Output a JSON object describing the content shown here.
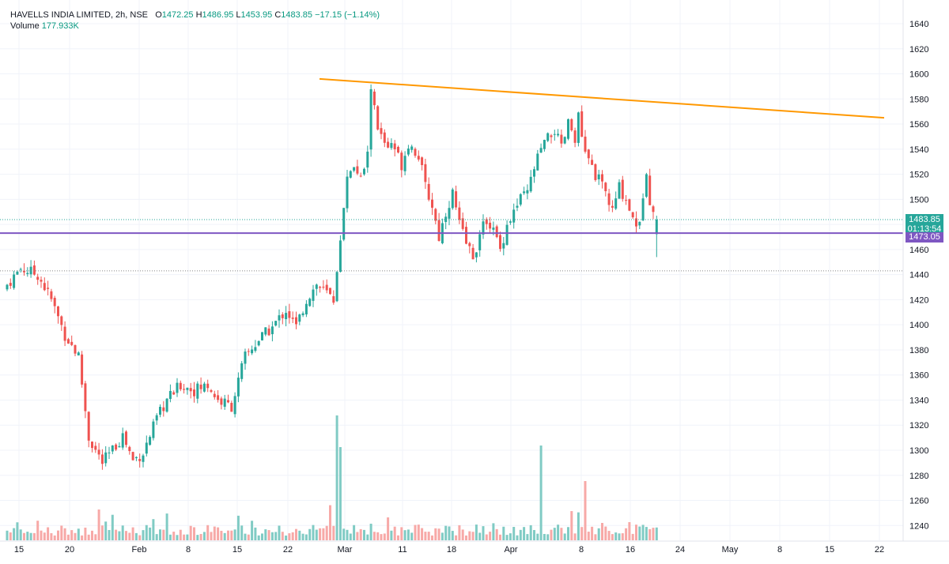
{
  "legend": {
    "symbol": "HAVELLS INDIA LIMITED, 2h, NSE",
    "open_label": "O",
    "open": "1472.25",
    "high_label": "H",
    "high": "1486.95",
    "low_label": "L",
    "low": "1453.95",
    "close_label": "C",
    "close": "1483.85",
    "change": "−17.15 (−1.14%)",
    "volume_label": "Volume",
    "volume": "177.933K"
  },
  "badges": {
    "last_price": "1483.85",
    "countdown": "01:13:54",
    "line_price": "1473.05"
  },
  "colors": {
    "up": "#26a69a",
    "down": "#ef5350",
    "volume_up": "#80cbc4",
    "volume_down": "#f7a9a7",
    "trendline": "#ff9800",
    "hline": "#7e57c2",
    "last_price_line": "#26a69a"
  },
  "chart_data": {
    "type": "candlestick",
    "y_ticks": [
      1240,
      1260,
      1280,
      1300,
      1320,
      1340,
      1360,
      1380,
      1400,
      1420,
      1440,
      1460,
      1480,
      1500,
      1520,
      1540,
      1560,
      1580,
      1600,
      1620,
      1640
    ],
    "ylim": [
      1230,
      1645
    ],
    "x_labels": [
      "15",
      "20",
      "Feb",
      "8",
      "15",
      "22",
      "Mar",
      "11",
      "18",
      "Apr",
      "8",
      "16",
      "24",
      "May",
      "8",
      "15",
      "22"
    ],
    "swing_path_close": [
      [
        0,
        1432
      ],
      [
        4,
        1445
      ],
      [
        9,
        1440
      ],
      [
        13,
        1420
      ],
      [
        17,
        1392
      ],
      [
        21,
        1375
      ],
      [
        24,
        1310
      ],
      [
        28,
        1290
      ],
      [
        31,
        1300
      ],
      [
        34,
        1312
      ],
      [
        37,
        1292
      ],
      [
        40,
        1298
      ],
      [
        44,
        1325
      ],
      [
        47,
        1340
      ],
      [
        51,
        1352
      ],
      [
        55,
        1348
      ],
      [
        59,
        1352
      ],
      [
        62,
        1340
      ],
      [
        66,
        1335
      ],
      [
        70,
        1375
      ],
      [
        74,
        1388
      ],
      [
        78,
        1398
      ],
      [
        82,
        1412
      ],
      [
        85,
        1398
      ],
      [
        88,
        1420
      ],
      [
        91,
        1432
      ],
      [
        94,
        1425
      ],
      [
        96,
        1420
      ],
      [
        97,
        1445
      ],
      [
        99,
        1490
      ],
      [
        100,
        1520
      ],
      [
        102,
        1528
      ],
      [
        104,
        1515
      ],
      [
        106,
        1535
      ],
      [
        107,
        1590
      ],
      [
        109,
        1555
      ],
      [
        111,
        1545
      ],
      [
        114,
        1540
      ],
      [
        116,
        1528
      ],
      [
        118,
        1545
      ],
      [
        121,
        1535
      ],
      [
        123,
        1510
      ],
      [
        125,
        1495
      ],
      [
        127,
        1470
      ],
      [
        129,
        1490
      ],
      [
        131,
        1505
      ],
      [
        133,
        1480
      ],
      [
        135,
        1465
      ],
      [
        137,
        1455
      ],
      [
        139,
        1470
      ],
      [
        141,
        1485
      ],
      [
        143,
        1475
      ],
      [
        145,
        1460
      ],
      [
        147,
        1480
      ],
      [
        149,
        1490
      ],
      [
        151,
        1500
      ],
      [
        153,
        1505
      ],
      [
        155,
        1525
      ],
      [
        157,
        1540
      ],
      [
        159,
        1548
      ],
      [
        161,
        1555
      ],
      [
        163,
        1540
      ],
      [
        165,
        1560
      ],
      [
        167,
        1550
      ],
      [
        168,
        1565
      ],
      [
        170,
        1535
      ],
      [
        172,
        1525
      ],
      [
        174,
        1515
      ],
      [
        176,
        1505
      ],
      [
        178,
        1490
      ],
      [
        180,
        1510
      ],
      [
        182,
        1500
      ],
      [
        184,
        1485
      ],
      [
        186,
        1478
      ],
      [
        187,
        1505
      ],
      [
        188,
        1525
      ],
      [
        189,
        1500
      ],
      [
        190,
        1490
      ],
      [
        191,
        1483.85
      ]
    ],
    "last_candle": {
      "open": 1472.25,
      "high": 1486.95,
      "low": 1453.95,
      "close": 1483.85
    },
    "trendline": {
      "from": [
        1595,
        1596
      ],
      "to": [
        1567,
        1565
      ]
    },
    "horizontal_line": 1473.05,
    "last_price": 1483.85,
    "dotted_level": 1443
  }
}
